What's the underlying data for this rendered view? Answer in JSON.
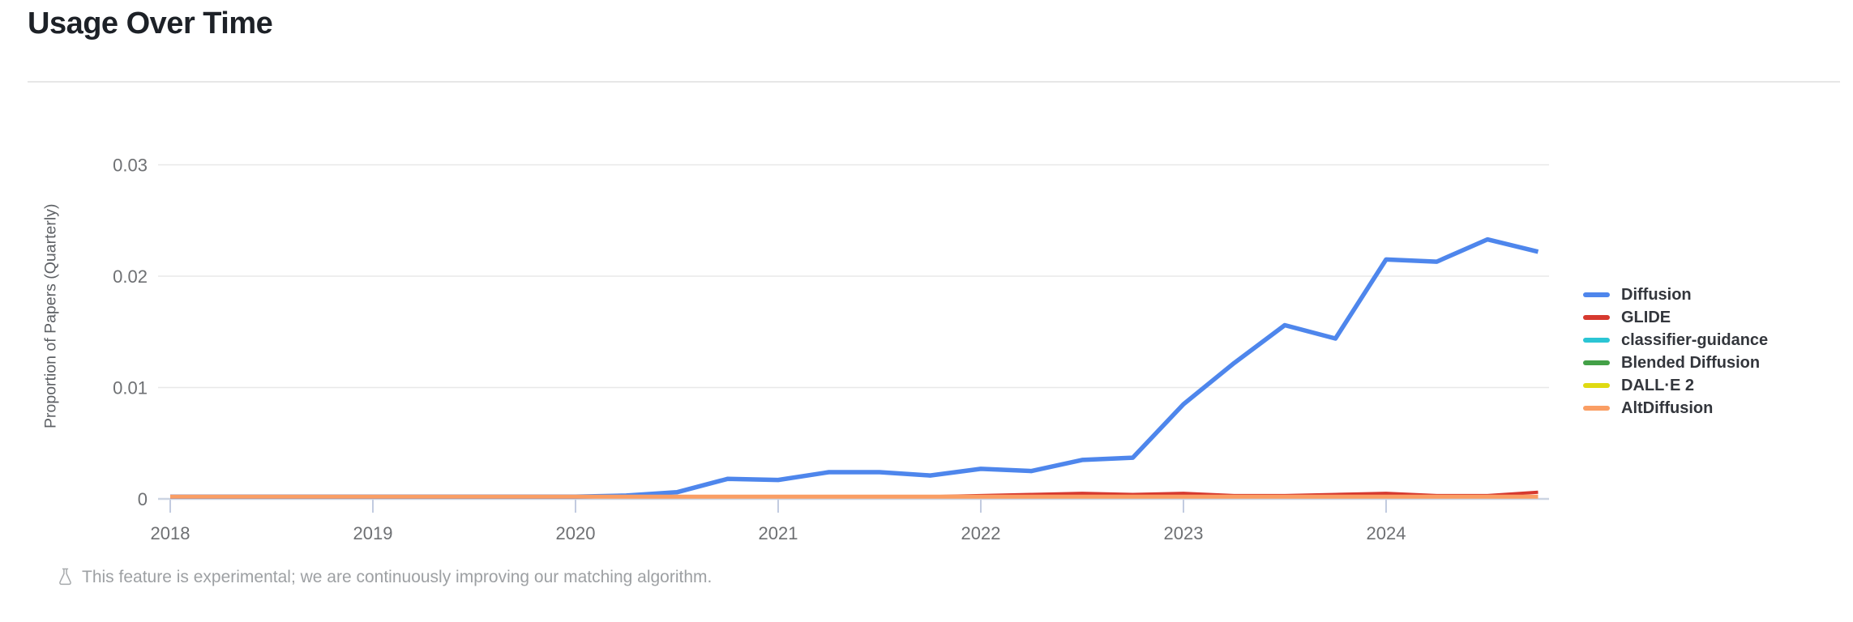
{
  "page": {
    "title": "Usage Over Time"
  },
  "footer": {
    "icon": "flask-icon",
    "note": "This feature is experimental; we are continuously improving our matching algorithm."
  },
  "chart_data": {
    "type": "line",
    "title": "Usage Over Time",
    "xlabel": "",
    "ylabel": "Proportion of Papers (Quarterly)",
    "x_unit": "year (quarterly samples)",
    "xlim": [
      2017.94,
      2024.81
    ],
    "ylim": [
      0,
      0.0354
    ],
    "grid": "horizontal",
    "legend_position": "right",
    "xticks": [
      2018,
      2019,
      2020,
      2021,
      2022,
      2023,
      2024
    ],
    "xtick_labels": [
      "2018",
      "2019",
      "2020",
      "2021",
      "2022",
      "2023",
      "2024"
    ],
    "yticks": [
      0,
      0.01,
      0.02,
      0.03
    ],
    "ytick_labels": [
      "0",
      "0.01",
      "0.02",
      "0.03"
    ],
    "x": [
      2018,
      2018.25,
      2018.5,
      2018.75,
      2019,
      2019.25,
      2019.5,
      2019.75,
      2020,
      2020.25,
      2020.5,
      2020.75,
      2021,
      2021.25,
      2021.5,
      2021.75,
      2022,
      2022.25,
      2022.5,
      2022.75,
      2023,
      2023.25,
      2023.5,
      2023.75,
      2024,
      2024.25,
      2024.5,
      2024.75
    ],
    "series": [
      {
        "name": "Diffusion",
        "color": "#4e86ec",
        "line_width": 5.5,
        "values": [
          0.0002,
          0.0002,
          0.0002,
          0.0002,
          0.0002,
          0.0002,
          0.0002,
          0.0002,
          0.0002,
          0.0003,
          0.0006,
          0.0018,
          0.0017,
          0.0024,
          0.0024,
          0.0021,
          0.0027,
          0.0025,
          0.0035,
          0.0037,
          0.0085,
          0.0122,
          0.0156,
          0.0144,
          0.0215,
          0.0213,
          0.0233,
          0.0222
        ]
      },
      {
        "name": "GLIDE",
        "color": "#d6392f",
        "line_width": 4,
        "values": [
          0.0002,
          0.0002,
          0.0002,
          0.0002,
          0.0002,
          0.0002,
          0.0002,
          0.0002,
          0.0002,
          0.0002,
          0.0002,
          0.0002,
          0.0002,
          0.0002,
          0.0002,
          0.0002,
          0.0003,
          0.0004,
          0.0005,
          0.0004,
          0.0005,
          0.0003,
          0.0003,
          0.0004,
          0.0005,
          0.0003,
          0.0003,
          0.0006
        ]
      },
      {
        "name": "classifier-guidance",
        "color": "#2bc5d4",
        "line_width": 4,
        "values": [
          0.0002,
          0.0002,
          0.0002,
          0.0002,
          0.0002,
          0.0002,
          0.0002,
          0.0002,
          0.0002,
          0.0002,
          0.0002,
          0.0002,
          0.0002,
          0.0002,
          0.0002,
          0.0002,
          0.0002,
          0.0002,
          0.0002,
          0.0002,
          0.0002,
          0.0002,
          0.0002,
          0.0002,
          0.0002,
          0.0002,
          0.0002,
          0.0002
        ]
      },
      {
        "name": "Blended Diffusion",
        "color": "#43a047",
        "line_width": 4,
        "values": [
          0.0002,
          0.0002,
          0.0002,
          0.0002,
          0.0002,
          0.0002,
          0.0002,
          0.0002,
          0.0002,
          0.0002,
          0.0002,
          0.0002,
          0.0002,
          0.0002,
          0.0002,
          0.0002,
          0.0002,
          0.0002,
          0.0002,
          0.0002,
          0.0002,
          0.0002,
          0.0002,
          0.0002,
          0.0002,
          0.0002,
          0.0002,
          0.0002
        ]
      },
      {
        "name": "DALL·E 2",
        "color": "#dfda12",
        "line_width": 4,
        "values": [
          0.0002,
          0.0002,
          0.0002,
          0.0002,
          0.0002,
          0.0002,
          0.0002,
          0.0002,
          0.0002,
          0.0002,
          0.0002,
          0.0002,
          0.0002,
          0.0002,
          0.0002,
          0.0002,
          0.0002,
          0.0002,
          0.0002,
          0.0002,
          0.0002,
          0.0002,
          0.0002,
          0.0002,
          0.0002,
          0.0002,
          0.0002,
          0.0002
        ]
      },
      {
        "name": "AltDiffusion",
        "color": "#fa9e64",
        "line_width": 5,
        "values": [
          0.0002,
          0.0002,
          0.0002,
          0.0002,
          0.0002,
          0.0002,
          0.0002,
          0.0002,
          0.0002,
          0.0002,
          0.0002,
          0.0002,
          0.0002,
          0.0002,
          0.0002,
          0.0002,
          0.0002,
          0.0002,
          0.0002,
          0.0002,
          0.0002,
          0.0002,
          0.0002,
          0.0002,
          0.0002,
          0.0002,
          0.0002,
          0.0002
        ]
      }
    ],
    "style": {
      "grid_color": "#e8e8e8",
      "axis_line_color": "#ccd4e2",
      "tick_mark_color": "#c2cbe0",
      "tick_text_color": "#6e7073"
    }
  }
}
